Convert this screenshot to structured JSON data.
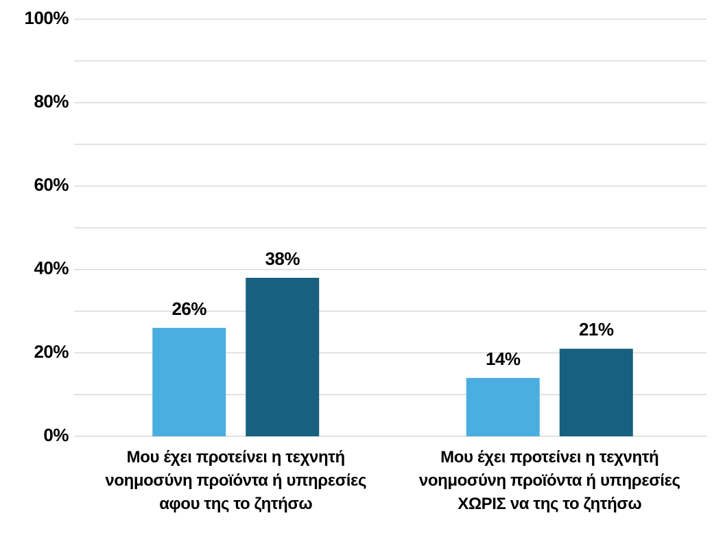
{
  "chart_data": {
    "type": "bar",
    "categories": [
      "Μου έχει προτείνει η τεχνητή νοημοσύνη προϊόντα ή υπηρεσίες αφου της το ζητήσω",
      "Μου έχει προτείνει η τεχνητή νοημοσύνη προϊόντα ή υπηρεσίες ΧΩΡΙΣ να της το ζητήσω"
    ],
    "series": [
      {
        "color": "#4aafe0",
        "values": [
          26,
          14
        ],
        "value_labels": [
          "26%",
          "14%"
        ]
      },
      {
        "color": "#17607f",
        "values": [
          38,
          21
        ],
        "value_labels": [
          "38%",
          "21%"
        ]
      }
    ],
    "ylim": [
      0,
      100
    ],
    "yticks": [
      {
        "value": 0,
        "label": "0%"
      },
      {
        "value": 20,
        "label": "20%"
      },
      {
        "value": 40,
        "label": "40%"
      },
      {
        "value": 60,
        "label": "60%"
      },
      {
        "value": 80,
        "label": "80%"
      },
      {
        "value": 100,
        "label": "100%"
      }
    ],
    "minor_yticks": [
      10,
      30,
      50,
      70,
      90
    ],
    "grid": true
  }
}
